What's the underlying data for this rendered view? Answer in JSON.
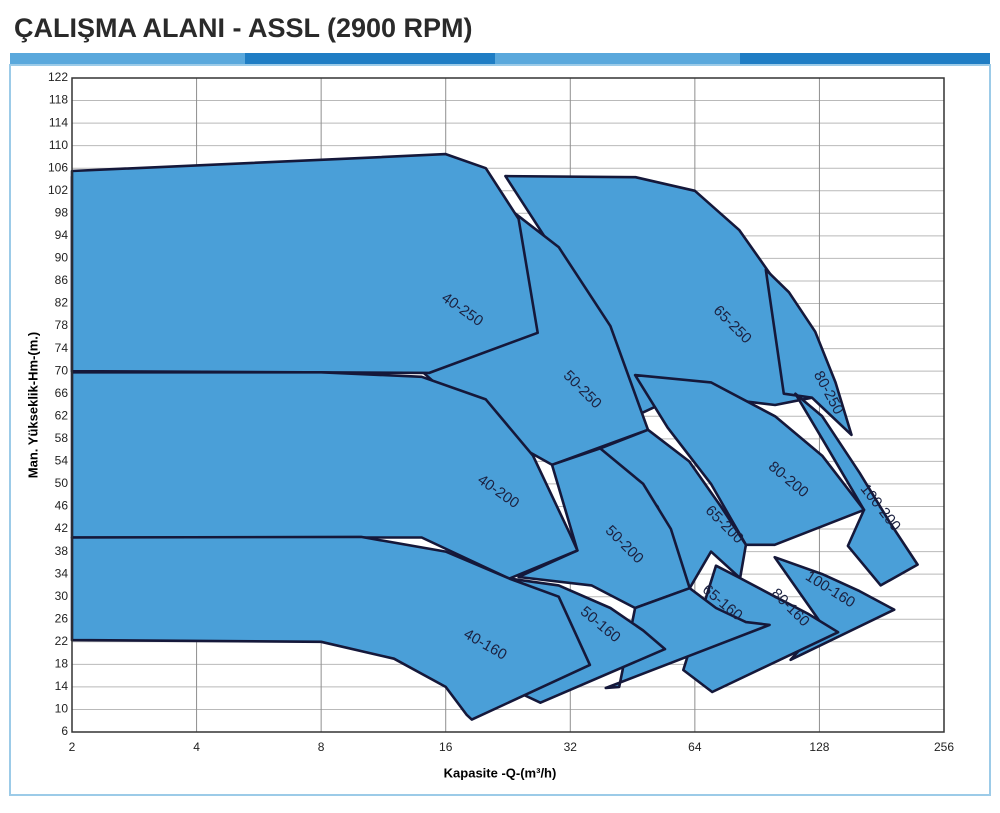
{
  "chart_data": {
    "type": "area-regions",
    "title": "ÇALIŞMA ALANI - ASSL (2900 RPM)",
    "x_label": "Kapasite -Q-(m³/h)",
    "y_label": "Man. Yükseklik-Hm-(m.)",
    "xscale": "log",
    "xlim": [
      2,
      256
    ],
    "xticks": [
      2,
      4,
      8,
      16,
      32,
      64,
      128,
      256
    ],
    "ylim": [
      6,
      122
    ],
    "yticks": [
      6,
      10,
      14,
      18,
      22,
      26,
      30,
      34,
      38,
      42,
      46,
      50,
      54,
      58,
      62,
      66,
      70,
      74,
      78,
      82,
      86,
      90,
      94,
      98,
      102,
      106,
      110,
      114,
      118,
      122
    ],
    "grid": true,
    "color": "#4a9fd8",
    "series": [
      {
        "name": "65-250",
        "x": [
          22.3,
          46,
          64,
          82,
          100,
          112,
          122.8,
          100,
          60,
          40,
          30
        ],
        "y": [
          104.6,
          104.4,
          102,
          95,
          86,
          76,
          65.3,
          64,
          66,
          60,
          90
        ]
      },
      {
        "name": "80-250",
        "x": [
          95,
          108,
          125,
          140,
          153,
          122.8,
          105
        ],
        "y": [
          88,
          84,
          77,
          68,
          58.7,
          65.3,
          66
        ]
      },
      {
        "name": "50-250",
        "x": [
          2,
          2,
          4,
          8,
          14,
          20,
          30,
          40,
          49.3,
          28.9,
          20,
          14
        ],
        "y": [
          70,
          104.5,
          105.5,
          106.5,
          106,
          102,
          92,
          78,
          59.6,
          53.4,
          60,
          70
        ]
      },
      {
        "name": "40-250",
        "x": [
          2,
          2,
          8,
          16,
          20,
          24,
          26.7,
          14.6
        ],
        "y": [
          70,
          105.5,
          107.5,
          108.5,
          106,
          97,
          76.8,
          69.7
        ]
      },
      {
        "name": "100-200",
        "x": [
          112,
          130,
          160,
          190,
          221,
          180,
          150,
          164,
          130
        ],
        "y": [
          66,
          62,
          52,
          43,
          35.7,
          32,
          39,
          45.4,
          58
        ]
      },
      {
        "name": "80-200",
        "x": [
          45.9,
          70,
          100,
          130,
          164,
          99.8,
          85,
          70,
          55
        ],
        "y": [
          69.3,
          68,
          62,
          55,
          45.4,
          39.2,
          39.2,
          50,
          60
        ]
      },
      {
        "name": "65-200",
        "x": [
          37.8,
          49.3,
          62,
          74,
          85,
          82.3,
          70,
          62.2,
          52
        ],
        "y": [
          56.3,
          59.6,
          54,
          46,
          39.2,
          33.3,
          38,
          31.5,
          46
        ]
      },
      {
        "name": "50-200",
        "x": [
          28.9,
          37.8,
          48,
          56,
          62.2,
          45.9,
          36,
          24,
          33.3
        ],
        "y": [
          53.4,
          56.3,
          50,
          42,
          31.5,
          28,
          32,
          33.5,
          38.2
        ]
      },
      {
        "name": "40-200",
        "x": [
          2,
          2,
          8,
          14,
          20,
          26,
          32,
          33.3,
          22.8,
          14
        ],
        "y": [
          40.5,
          69.8,
          69.8,
          69,
          65,
          55,
          41,
          38.2,
          33.2,
          40.5
        ]
      },
      {
        "name": "100-160",
        "x": [
          99.8,
          130,
          160,
          194,
          109,
          130
        ],
        "y": [
          37,
          34,
          31,
          27.7,
          18.8,
          25
        ]
      },
      {
        "name": "80-160",
        "x": [
          72,
          82.3,
          100,
          120,
          142,
          70.5,
          60
        ],
        "y": [
          35.5,
          33.3,
          30,
          27,
          23.7,
          13.1,
          17
        ]
      },
      {
        "name": "65-160",
        "x": [
          45.9,
          62.2,
          72,
          85,
          97,
          39,
          42
        ],
        "y": [
          28,
          31.5,
          28,
          25.5,
          25,
          13.8,
          14
        ]
      },
      {
        "name": "50-160",
        "x": [
          22.8,
          30,
          40,
          48,
          54.2,
          27.1,
          24
        ],
        "y": [
          33.2,
          32,
          28,
          24,
          20.7,
          11.2,
          13
        ]
      },
      {
        "name": "40-160",
        "x": [
          2,
          8,
          12,
          16,
          18,
          18.5,
          35.7,
          30,
          22.8,
          16,
          10,
          2
        ],
        "y": [
          22.3,
          22,
          19,
          14,
          9,
          8.2,
          17.9,
          30,
          33.2,
          38,
          40.6,
          40.5
        ]
      }
    ]
  }
}
